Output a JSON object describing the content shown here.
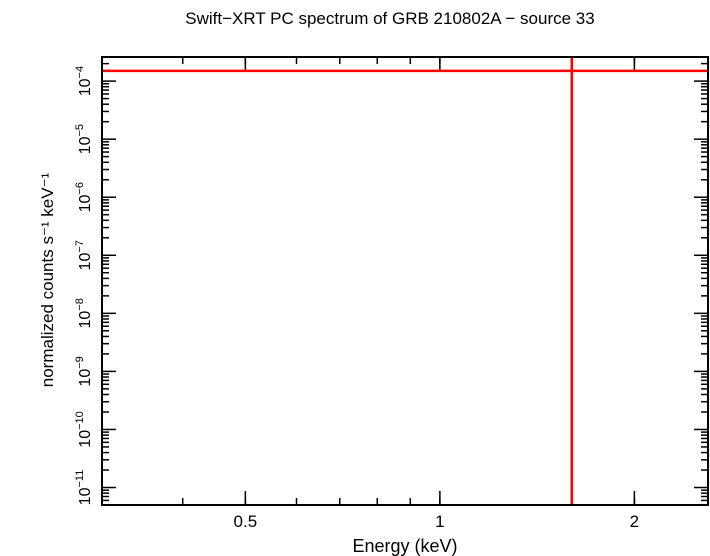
{
  "chart_data": {
    "type": "line",
    "title": "Swift−XRT PC spectrum of GRB 210802A − source 33",
    "xlabel": "Energy (keV)",
    "ylabel": "normalized counts s⁻¹ keV⁻¹",
    "x_scale": "log",
    "y_scale": "log",
    "xlim": [
      0.3,
      2.6
    ],
    "ylim": [
      5e-12,
      0.00026
    ],
    "x_ticks": [
      {
        "value": 0.5,
        "label": "0.5"
      },
      {
        "value": 1,
        "label": "1"
      },
      {
        "value": 2,
        "label": "2"
      }
    ],
    "y_ticks": [
      {
        "value": 1e-11,
        "base": "10",
        "exp": "−11"
      },
      {
        "value": 1e-10,
        "base": "10",
        "exp": "−10"
      },
      {
        "value": 1e-09,
        "base": "10",
        "exp": "−9"
      },
      {
        "value": 1e-08,
        "base": "10",
        "exp": "−8"
      },
      {
        "value": 1e-07,
        "base": "10",
        "exp": "−7"
      },
      {
        "value": 1e-06,
        "base": "10",
        "exp": "−6"
      },
      {
        "value": 1e-05,
        "base": "10",
        "exp": "−5"
      },
      {
        "value": 0.0001,
        "base": "10",
        "exp": "−4"
      }
    ],
    "series": [
      {
        "color": "#ff0000",
        "points": [
          {
            "x": 1.6,
            "y": 0.00015,
            "x_err": [
              1.6,
              1.6
            ],
            "y_err": [
              5e-12,
              0.00026
            ],
            "horizontal_extent": [
              0.3,
              2.6
            ]
          }
        ]
      }
    ],
    "grid": false
  }
}
